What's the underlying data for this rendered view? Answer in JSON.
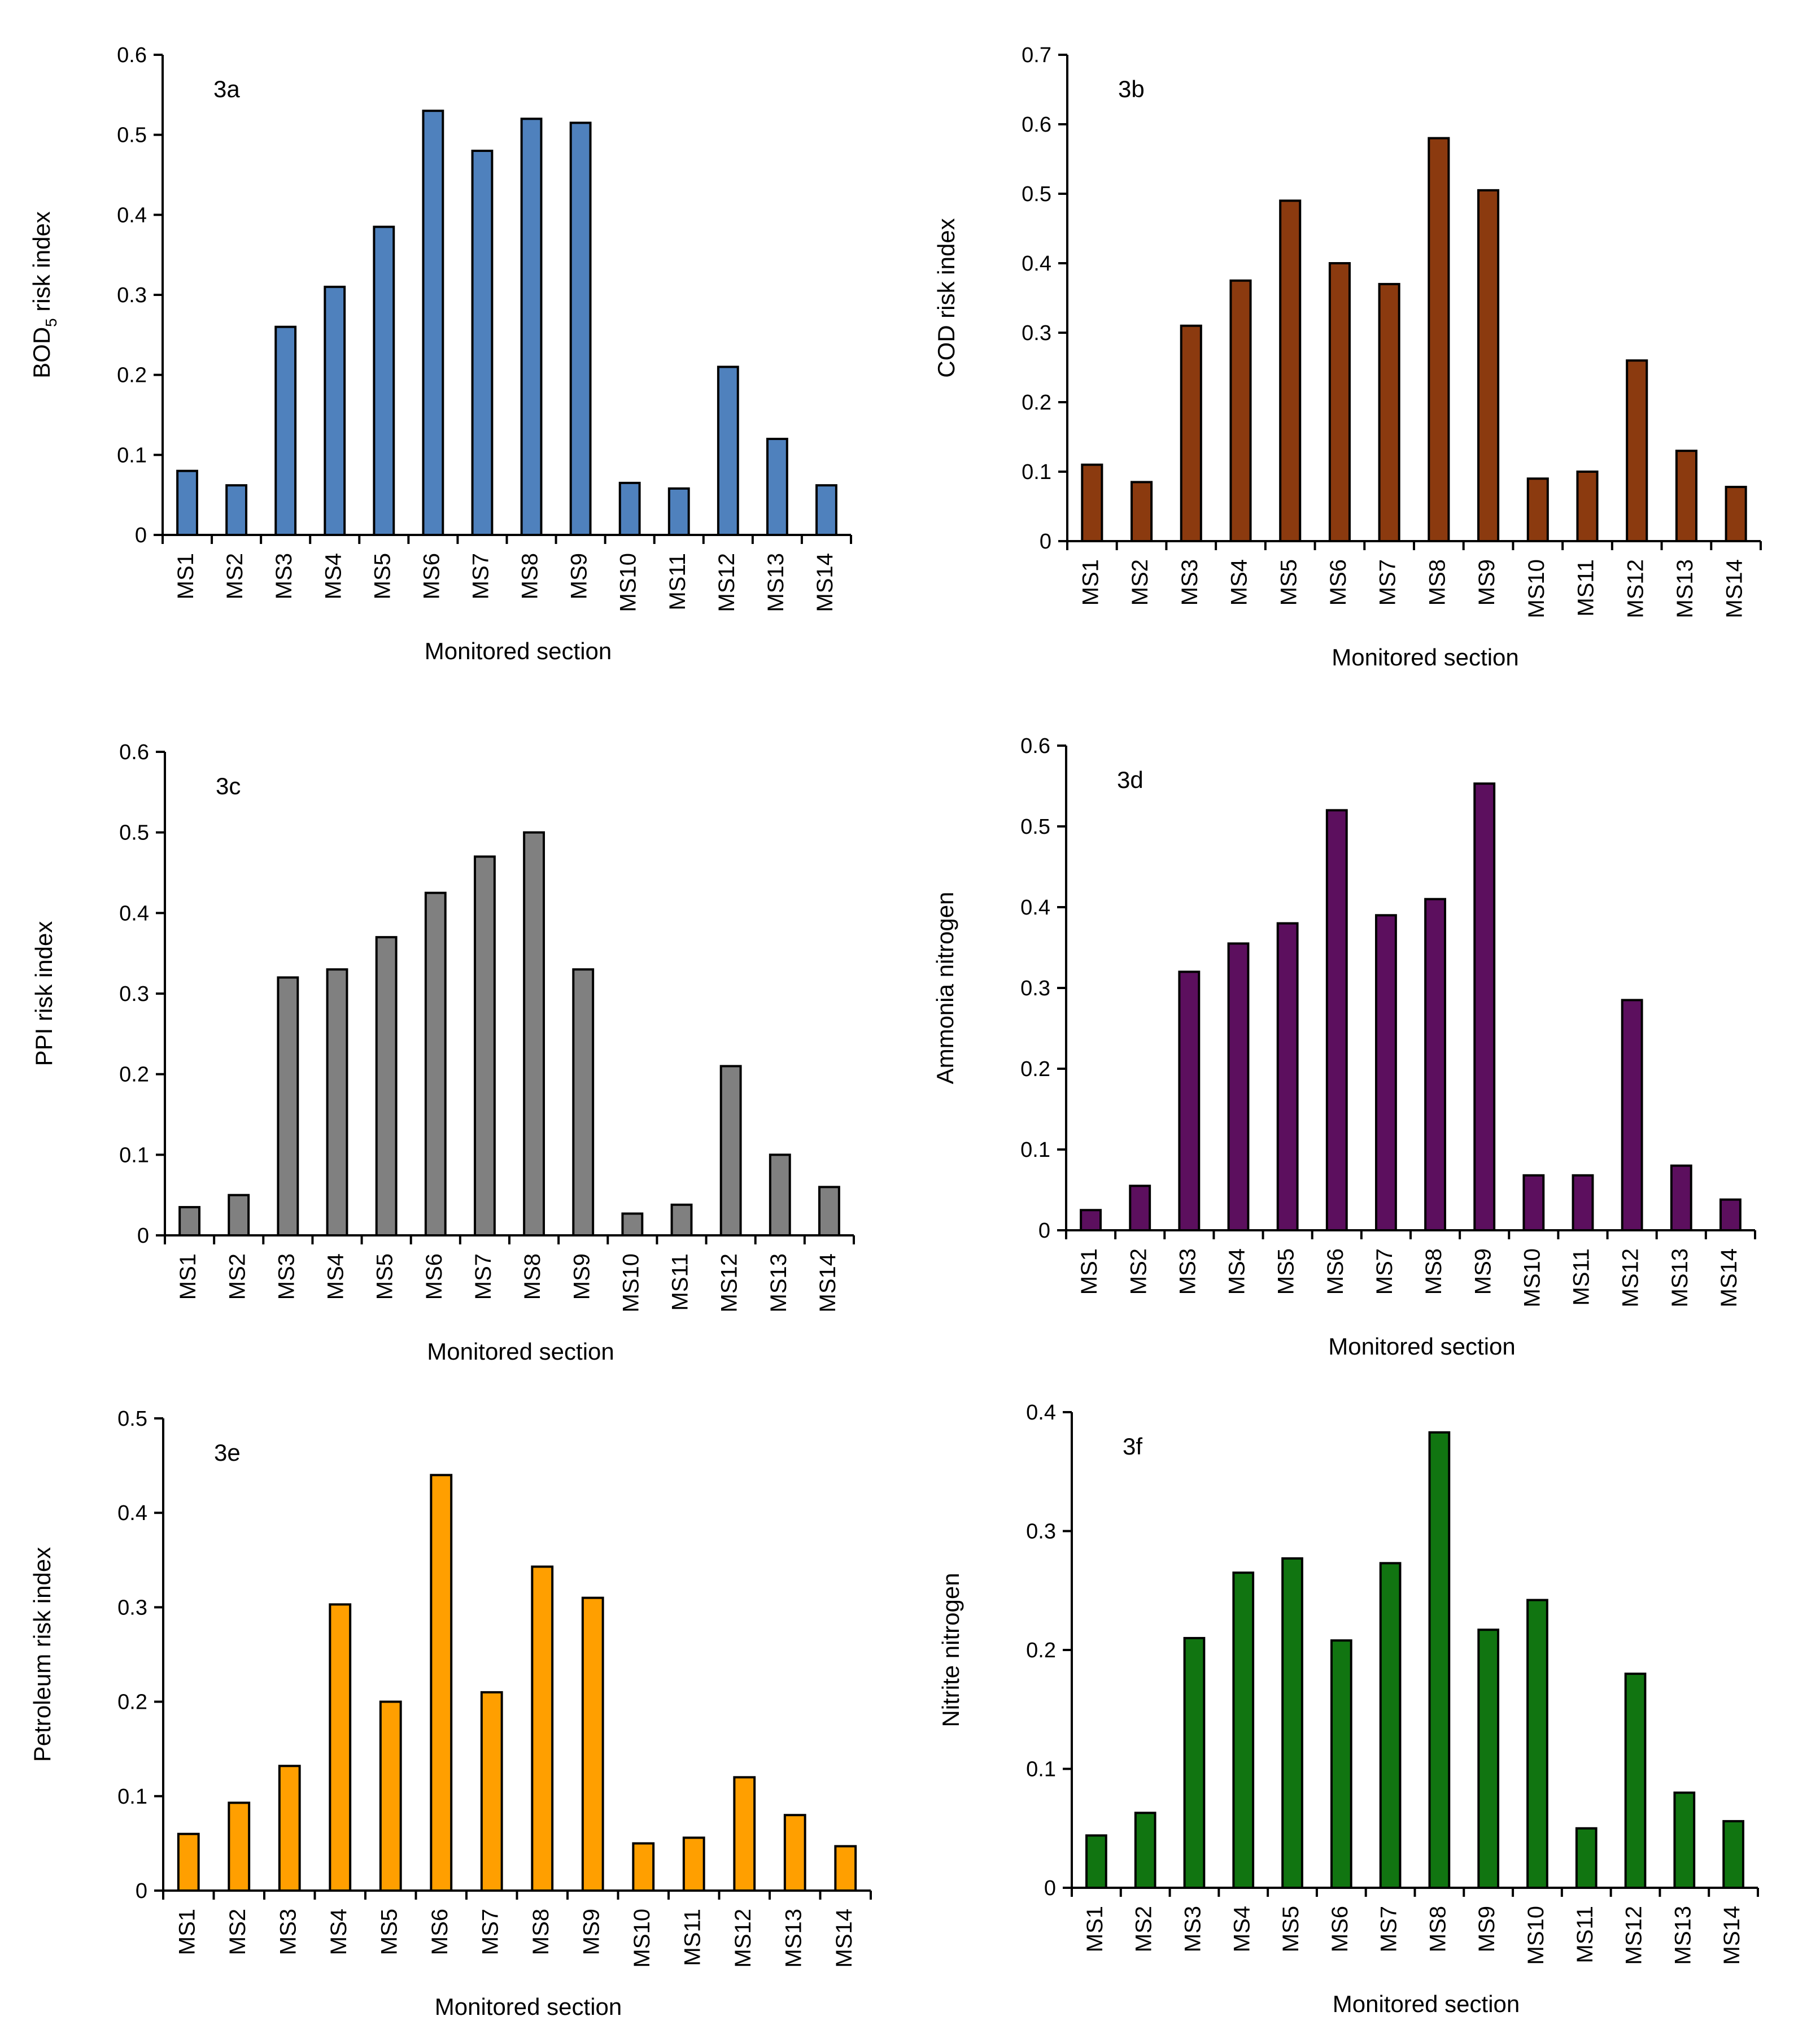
{
  "chart_data": [
    {
      "type": "bar",
      "panel": "3a",
      "color": "#4f81bd",
      "ylabel": "BOD5 risk index",
      "ylabel_main": "BOD",
      "ylabel_sub": "5",
      "ylabel_rest": " risk index",
      "xlabel": "Monitored section",
      "ylim": [
        0,
        0.6
      ],
      "yticks": [
        "0",
        "0.1",
        "0.2",
        "0.3",
        "0.4",
        "0.5",
        "0.6"
      ],
      "categories": [
        "MS1",
        "MS2",
        "MS3",
        "MS4",
        "MS5",
        "MS6",
        "MS7",
        "MS8",
        "MS9",
        "MS10",
        "MS11",
        "MS12",
        "MS13",
        "MS14"
      ],
      "values": [
        0.08,
        0.062,
        0.26,
        0.31,
        0.385,
        0.53,
        0.48,
        0.52,
        0.515,
        0.065,
        0.058,
        0.21,
        0.12,
        0.062
      ]
    },
    {
      "type": "bar",
      "panel": "3b",
      "color": "#8b3a0f",
      "ylabel": "COD risk index",
      "xlabel": "Monitored section",
      "ylim": [
        0,
        0.7
      ],
      "yticks": [
        "0",
        "0.1",
        "0.2",
        "0.3",
        "0.4",
        "0.5",
        "0.6",
        "0.7"
      ],
      "categories": [
        "MS1",
        "MS2",
        "MS3",
        "MS4",
        "MS5",
        "MS6",
        "MS7",
        "MS8",
        "MS9",
        "MS10",
        "MS11",
        "MS12",
        "MS13",
        "MS14"
      ],
      "values": [
        0.11,
        0.085,
        0.31,
        0.375,
        0.49,
        0.4,
        0.37,
        0.58,
        0.505,
        0.09,
        0.1,
        0.26,
        0.13,
        0.078
      ]
    },
    {
      "type": "bar",
      "panel": "3c",
      "color": "#808080",
      "ylabel": "PPI risk index",
      "xlabel": "Monitored section",
      "ylim": [
        0,
        0.6
      ],
      "yticks": [
        "0",
        "0.1",
        "0.2",
        "0.3",
        "0.4",
        "0.5",
        "0.6"
      ],
      "categories": [
        "MS1",
        "MS2",
        "MS3",
        "MS4",
        "MS5",
        "MS6",
        "MS7",
        "MS8",
        "MS9",
        "MS10",
        "MS11",
        "MS12",
        "MS13",
        "MS14"
      ],
      "values": [
        0.035,
        0.05,
        0.32,
        0.33,
        0.37,
        0.425,
        0.47,
        0.5,
        0.33,
        0.027,
        0.038,
        0.21,
        0.1,
        0.06
      ]
    },
    {
      "type": "bar",
      "panel": "3d",
      "color": "#5c0f5e",
      "ylabel": "Ammonia nitrogen",
      "xlabel": "Monitored section",
      "ylim": [
        0,
        0.6
      ],
      "yticks": [
        "0",
        "0.1",
        "0.2",
        "0.3",
        "0.4",
        "0.5",
        "0.6"
      ],
      "categories": [
        "MS1",
        "MS2",
        "MS3",
        "MS4",
        "MS5",
        "MS6",
        "MS7",
        "MS8",
        "MS9",
        "MS10",
        "MS11",
        "MS12",
        "MS13",
        "MS14"
      ],
      "values": [
        0.025,
        0.055,
        0.32,
        0.355,
        0.38,
        0.52,
        0.39,
        0.41,
        0.553,
        0.068,
        0.068,
        0.285,
        0.08,
        0.038
      ]
    },
    {
      "type": "bar",
      "panel": "3e",
      "color": "#ff9f00",
      "ylabel": "Petroleum risk index",
      "xlabel": "Monitored section",
      "ylim": [
        0,
        0.5
      ],
      "yticks": [
        "0",
        "0.1",
        "0.2",
        "0.3",
        "0.4",
        "0.5"
      ],
      "categories": [
        "MS1",
        "MS2",
        "MS3",
        "MS4",
        "MS5",
        "MS6",
        "MS7",
        "MS8",
        "MS9",
        "MS10",
        "MS11",
        "MS12",
        "MS13",
        "MS14"
      ],
      "values": [
        0.06,
        0.093,
        0.132,
        0.303,
        0.2,
        0.44,
        0.21,
        0.343,
        0.31,
        0.05,
        0.056,
        0.12,
        0.08,
        0.047
      ]
    },
    {
      "type": "bar",
      "panel": "3f",
      "color": "#117511",
      "ylabel": "Nitrite nitrogen",
      "xlabel": "Monitored section",
      "ylim": [
        0,
        0.4
      ],
      "yticks": [
        "0",
        "0.1",
        "0.2",
        "0.3",
        "0.4"
      ],
      "categories": [
        "MS1",
        "MS2",
        "MS3",
        "MS4",
        "MS5",
        "MS6",
        "MS7",
        "MS8",
        "MS9",
        "MS10",
        "MS11",
        "MS12",
        "MS13",
        "MS14"
      ],
      "values": [
        0.044,
        0.063,
        0.21,
        0.265,
        0.277,
        0.208,
        0.273,
        0.383,
        0.217,
        0.242,
        0.05,
        0.18,
        0.08,
        0.056
      ]
    }
  ]
}
